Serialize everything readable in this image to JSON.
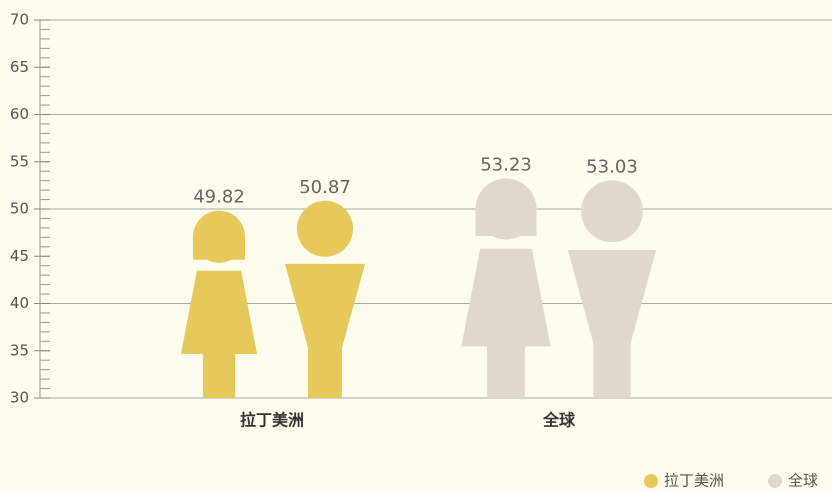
{
  "chart_data": {
    "type": "pictorial-bar",
    "categories": [
      "拉丁美洲",
      "全球"
    ],
    "series": [
      {
        "name": "拉丁美洲",
        "color": "#e6c95a",
        "values": [
          49.82,
          50.87
        ]
      },
      {
        "name": "全球",
        "color": "#e0d9cb",
        "values": [
          53.23,
          53.03
        ]
      }
    ],
    "ylim": [
      30,
      70
    ],
    "yticks": [
      30,
      35,
      40,
      45,
      50,
      55,
      60,
      65,
      70
    ],
    "gridlines": [
      30,
      40,
      50,
      60,
      70
    ],
    "legend": "bottom-right"
  }
}
